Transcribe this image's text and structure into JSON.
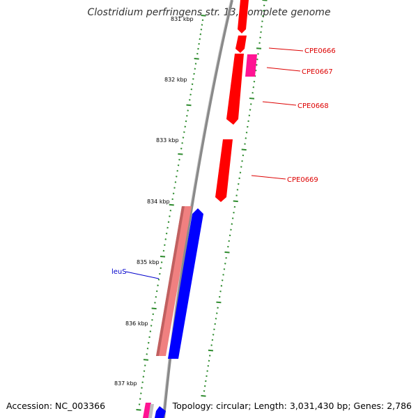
{
  "title": "Clostridium perfringens str. 13, complete genome",
  "footer": {
    "accession": "Accession: NC_003366",
    "summary": "Topology: circular; Length: 3,031,430 bp; Genes: 2,786"
  },
  "colors": {
    "backbone": "#8a8a8a",
    "tick": "#2e8b2e",
    "forward_gene": "#ff0000",
    "forward_alt": "#ff1493",
    "reverse_gene": "#0000ff",
    "reverse_rna": "#f08080",
    "label_red": "#dd0000",
    "label_blue": "#0000cc"
  },
  "kbp_labels": [
    "831 kbp",
    "832 kbp",
    "833 kbp",
    "834 kbp",
    "835 kbp",
    "836 kbp",
    "837 kbp"
  ],
  "gene_labels": [
    {
      "text": "CPE0666",
      "color": "label_red"
    },
    {
      "text": "CPE0667",
      "color": "label_red"
    },
    {
      "text": "CPE0668",
      "color": "label_red"
    },
    {
      "text": "CPE0669",
      "color": "label_red"
    },
    {
      "text": "leuS",
      "color": "label_blue"
    }
  ]
}
